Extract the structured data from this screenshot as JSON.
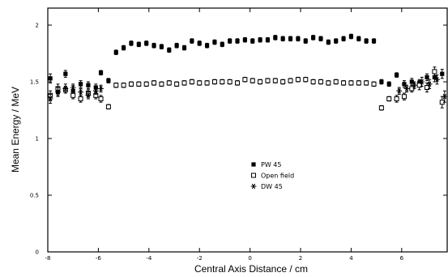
{
  "chart_data": {
    "type": "scatter",
    "title": "",
    "xlabel": "Central Axis Distance / cm",
    "ylabel": "Mean Energy / MeV",
    "xlim": [
      -8,
      7.8
    ],
    "ylim": [
      0,
      2.15
    ],
    "x_ticks": [
      -8,
      -6,
      -4,
      -2,
      0,
      2,
      4,
      6
    ],
    "x_tick_labels": [
      "-8",
      "-6",
      "-4",
      "-2",
      "0",
      "2",
      "4",
      "6"
    ],
    "y_ticks": [
      0,
      0.5,
      1,
      1.5,
      2
    ],
    "y_tick_labels": [
      "0",
      "0.5",
      "1",
      "1.5",
      "2"
    ],
    "grid": false,
    "legend_position": "center",
    "series": [
      {
        "name": "PW 45",
        "marker": "filled-square",
        "x": [
          -7.9,
          -7.6,
          -7.3,
          -7.0,
          -6.7,
          -6.4,
          -6.1,
          -5.9,
          -5.6,
          -5.3,
          -5.0,
          -4.7,
          -4.4,
          -4.1,
          -3.8,
          -3.5,
          -3.2,
          -2.9,
          -2.6,
          -2.3,
          -2.0,
          -1.7,
          -1.4,
          -1.1,
          -0.8,
          -0.5,
          -0.2,
          0.1,
          0.4,
          0.7,
          1.0,
          1.3,
          1.6,
          1.9,
          2.2,
          2.5,
          2.8,
          3.1,
          3.4,
          3.7,
          4.0,
          4.3,
          4.6,
          4.9,
          5.2,
          5.5,
          5.8,
          6.1,
          6.4,
          6.7,
          7.0,
          7.3,
          7.6
        ],
        "y": [
          1.53,
          1.41,
          1.57,
          1.42,
          1.48,
          1.47,
          1.45,
          1.58,
          1.51,
          1.76,
          1.8,
          1.84,
          1.83,
          1.84,
          1.82,
          1.81,
          1.78,
          1.82,
          1.8,
          1.86,
          1.84,
          1.82,
          1.85,
          1.83,
          1.86,
          1.86,
          1.87,
          1.86,
          1.87,
          1.87,
          1.89,
          1.88,
          1.88,
          1.88,
          1.86,
          1.89,
          1.88,
          1.85,
          1.86,
          1.88,
          1.9,
          1.88,
          1.86,
          1.86,
          1.5,
          1.48,
          1.56,
          1.48,
          1.5,
          1.49,
          1.54,
          1.54,
          1.57
        ],
        "err": [
          0.04,
          0.03,
          0.03,
          0.03,
          0.03,
          0.03,
          0.03,
          0.02,
          0.02,
          0.02,
          0.02,
          0.02,
          0.02,
          0.02,
          0.02,
          0.02,
          0.02,
          0.02,
          0.02,
          0.02,
          0.02,
          0.02,
          0.02,
          0.02,
          0.02,
          0.02,
          0.02,
          0.02,
          0.02,
          0.02,
          0.02,
          0.02,
          0.02,
          0.02,
          0.02,
          0.02,
          0.02,
          0.02,
          0.02,
          0.02,
          0.02,
          0.02,
          0.02,
          0.02,
          0.02,
          0.02,
          0.02,
          0.03,
          0.03,
          0.03,
          0.03,
          0.04,
          0.04
        ]
      },
      {
        "name": "Open field",
        "marker": "open-square",
        "x": [
          -7.9,
          -7.6,
          -7.3,
          -7.0,
          -6.7,
          -6.4,
          -6.1,
          -5.9,
          -5.6,
          -5.3,
          -5.0,
          -4.7,
          -4.4,
          -4.1,
          -3.8,
          -3.5,
          -3.2,
          -2.9,
          -2.6,
          -2.3,
          -2.0,
          -1.7,
          -1.4,
          -1.1,
          -0.8,
          -0.5,
          -0.2,
          0.1,
          0.4,
          0.7,
          1.0,
          1.3,
          1.6,
          1.9,
          2.2,
          2.5,
          2.8,
          3.1,
          3.4,
          3.7,
          4.0,
          4.3,
          4.6,
          4.9,
          5.2,
          5.5,
          5.8,
          6.1,
          6.4,
          6.7,
          7.0,
          7.3,
          7.6
        ],
        "y": [
          1.38,
          1.44,
          1.43,
          1.38,
          1.35,
          1.4,
          1.38,
          1.35,
          1.28,
          1.47,
          1.47,
          1.48,
          1.48,
          1.48,
          1.49,
          1.48,
          1.49,
          1.48,
          1.49,
          1.5,
          1.49,
          1.49,
          1.5,
          1.5,
          1.5,
          1.49,
          1.52,
          1.51,
          1.5,
          1.51,
          1.51,
          1.5,
          1.51,
          1.52,
          1.52,
          1.5,
          1.5,
          1.49,
          1.5,
          1.49,
          1.49,
          1.49,
          1.49,
          1.48,
          1.27,
          1.35,
          1.35,
          1.37,
          1.44,
          1.47,
          1.45,
          1.59,
          1.32
        ],
        "err": [
          0.04,
          0.04,
          0.03,
          0.03,
          0.03,
          0.03,
          0.03,
          0.03,
          0.02,
          0.02,
          0.02,
          0.02,
          0.02,
          0.02,
          0.02,
          0.02,
          0.02,
          0.02,
          0.02,
          0.02,
          0.02,
          0.02,
          0.02,
          0.02,
          0.02,
          0.02,
          0.02,
          0.02,
          0.02,
          0.02,
          0.02,
          0.02,
          0.02,
          0.02,
          0.02,
          0.02,
          0.02,
          0.02,
          0.02,
          0.02,
          0.02,
          0.02,
          0.02,
          0.02,
          0.02,
          0.02,
          0.03,
          0.03,
          0.03,
          0.04,
          0.04,
          0.04,
          0.05
        ]
      },
      {
        "name": "DW 45",
        "marker": "star",
        "x": [
          -7.9,
          -7.6,
          -7.3,
          -7.0,
          -6.7,
          -6.4,
          -6.1,
          -5.9,
          5.9,
          6.2,
          6.5,
          6.8,
          7.1,
          7.4,
          7.7
        ],
        "y": [
          1.35,
          1.41,
          1.44,
          1.45,
          1.41,
          1.38,
          1.42,
          1.44,
          1.42,
          1.44,
          1.47,
          1.5,
          1.48,
          1.52,
          1.37
        ],
        "err": [
          0.04,
          0.04,
          0.04,
          0.03,
          0.03,
          0.03,
          0.03,
          0.03,
          0.03,
          0.03,
          0.03,
          0.04,
          0.04,
          0.04,
          0.05
        ]
      }
    ]
  },
  "colors": {
    "foreground": "#000000",
    "background": "#ffffff"
  }
}
